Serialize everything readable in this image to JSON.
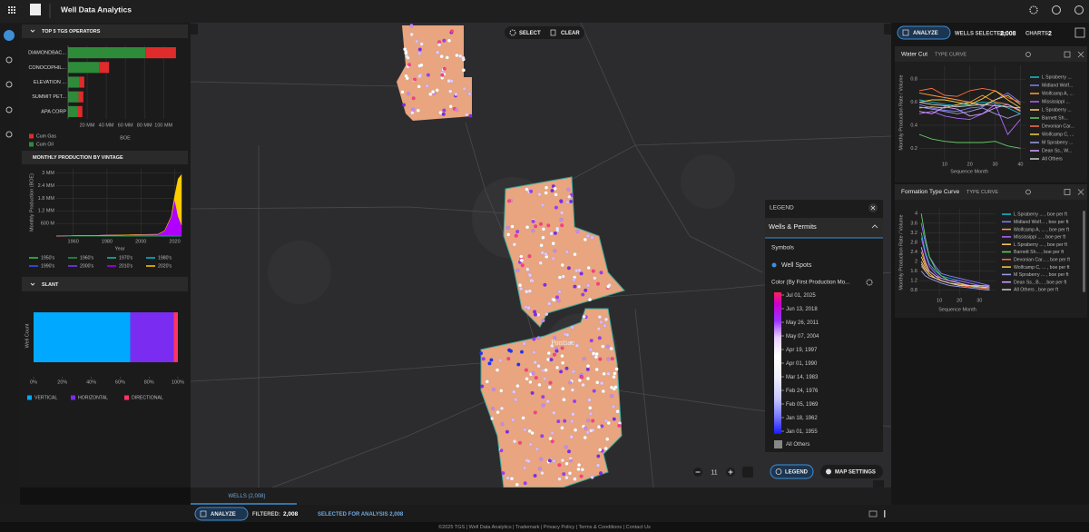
{
  "header": {
    "title": "Well Data Analytics"
  },
  "map": {
    "select": "SELECT",
    "clear": "CLEAR",
    "place": "Pontiac",
    "zoom": "11",
    "legend_button": "LEGEND",
    "settings_button": "MAP SETTINGS"
  },
  "legend": {
    "title": "LEGEND",
    "layer": "Wells & Permits",
    "symbols": "Symbols",
    "symbol": "Well Spots",
    "color_by": "Color (By First Production Mo...",
    "stops": [
      "Jul 01, 2025",
      "Jun 13, 2018",
      "May 26, 2011",
      "May 07, 2004",
      "Apr 19, 1997",
      "Apr 01, 1990",
      "Mar 14, 1983",
      "Feb 24, 1976",
      "Feb 05, 1969",
      "Jan 18, 1962",
      "Jan 01, 1955"
    ],
    "other": "All Others"
  },
  "right_bar": {
    "analyze": "ANALYZE",
    "wells_selected": "WELLS SELECTED:",
    "wells_count": "2,008",
    "charts": "CHARTS:",
    "charts_count": "2"
  },
  "bottom": {
    "tab": "WELLS (2,008)",
    "analyze": "ANALYZE",
    "filtered": "FILTERED:",
    "filtered_count": "2,008",
    "selected": "SELECTED FOR ANALYSIS 2,008"
  },
  "footer": "©2025 TGS | Well Data Analytics | Trademark | Privacy Policy | Terms & Conditions | Contact Us",
  "chart_data": [
    {
      "type": "bar",
      "orientation": "horizontal",
      "stacked": true,
      "title": "TOP 5 TGS OPERATORS",
      "xlabel": "BOE",
      "categories": [
        "DIAMONDBAC...",
        "CONOCOPHIL...",
        "ELEVATION ...",
        "SUMMIT PET...",
        "APA CORP"
      ],
      "series": [
        {
          "name": "Cum Oil",
          "color": "#2e8b3a",
          "values": [
            81000000,
            33000000,
            12000000,
            11000000,
            10000000
          ]
        },
        {
          "name": "Cum Gas",
          "color": "#e02b2b",
          "values": [
            32000000,
            10000000,
            5000000,
            5000000,
            5000000
          ]
        }
      ],
      "xlim": [
        0,
        115000000
      ],
      "xticks": [
        {
          "value": 20000000,
          "label": "20 MM"
        },
        {
          "value": 40000000,
          "label": "40 MM"
        },
        {
          "value": 60000000,
          "label": "60 MM"
        },
        {
          "value": 80000000,
          "label": "80 MM"
        },
        {
          "value": 100000000,
          "label": "100 MM"
        }
      ],
      "grid": true
    },
    {
      "type": "area",
      "stacked": true,
      "title": "MONTHLY PRODUCTION BY VINTAGE",
      "xlabel": "Year",
      "ylabel": "Monthly Production (BOE)",
      "x": [
        1950,
        1960,
        1970,
        1980,
        1990,
        2000,
        2010,
        2014,
        2018,
        2020,
        2022,
        2024
      ],
      "series": [
        {
          "name": "1950's",
          "color": "#2ecc40",
          "values": [
            2000,
            5000,
            3000,
            2000,
            1000,
            1000,
            500,
            500,
            400,
            300,
            300,
            300
          ]
        },
        {
          "name": "1960's",
          "color": "#1e9e4a",
          "values": [
            0,
            8000,
            10000,
            6000,
            4000,
            3000,
            2000,
            1500,
            1200,
            1000,
            900,
            800
          ]
        },
        {
          "name": "1970's",
          "color": "#1abc9c",
          "values": [
            0,
            0,
            15000,
            12000,
            8000,
            6000,
            4000,
            3000,
            2500,
            2000,
            1800,
            1600
          ]
        },
        {
          "name": "1980's",
          "color": "#00bcd4",
          "values": [
            0,
            0,
            0,
            20000,
            15000,
            10000,
            7000,
            6000,
            5000,
            4000,
            3500,
            3000
          ]
        },
        {
          "name": "1990's",
          "color": "#3355ff",
          "values": [
            0,
            0,
            0,
            0,
            20000,
            15000,
            10000,
            8000,
            6000,
            5000,
            4500,
            4000
          ]
        },
        {
          "name": "2000's",
          "color": "#7a3cff",
          "values": [
            0,
            0,
            0,
            0,
            0,
            40000,
            40000,
            30000,
            25000,
            20000,
            18000,
            16000
          ]
        },
        {
          "name": "2010's",
          "color": "#b000ff",
          "values": [
            0,
            0,
            0,
            0,
            0,
            0,
            20000,
            200000,
            900000,
            1700000,
            900000,
            500000
          ]
        },
        {
          "name": "2020's",
          "color": "#ffcc00",
          "values": [
            0,
            0,
            0,
            0,
            0,
            0,
            0,
            0,
            0,
            200000,
            1800000,
            2400000
          ]
        }
      ],
      "xlim": [
        1950,
        2024
      ],
      "xticks": [
        1960,
        1980,
        2000,
        2020
      ],
      "ylim": [
        0,
        3200000
      ],
      "yticks": [
        {
          "value": 600000,
          "label": "600 M"
        },
        {
          "value": 1200000,
          "label": "1.2 MM"
        },
        {
          "value": 1800000,
          "label": "1.8 MM"
        },
        {
          "value": 2400000,
          "label": "2.4 MM"
        },
        {
          "value": 3000000,
          "label": "3 MM"
        }
      ],
      "grid": true
    },
    {
      "type": "bar",
      "orientation": "horizontal",
      "stacked": true,
      "title": "SLANT",
      "ylabel": "Well Count",
      "categories": [
        null
      ],
      "series": [
        {
          "name": "VERTICAL",
          "color": "#00a8ff",
          "values": [
            67
          ]
        },
        {
          "name": "HORIZONTAL",
          "color": "#7a2cf0",
          "values": [
            30
          ]
        },
        {
          "name": "DIRECTIONAL",
          "color": "#ff3366",
          "values": [
            3
          ]
        }
      ],
      "xlim": [
        0,
        100
      ],
      "xticks": [
        {
          "value": 0,
          "label": "0%"
        },
        {
          "value": 20,
          "label": "20%"
        },
        {
          "value": 40,
          "label": "40%"
        },
        {
          "value": 60,
          "label": "60%"
        },
        {
          "value": 80,
          "label": "80%"
        },
        {
          "value": 100,
          "label": "100%"
        }
      ],
      "grid": false
    },
    {
      "type": "line",
      "title": "Water Cut",
      "subtitle": "TYPE CURVE",
      "xlabel": "Sequence Month",
      "ylabel": "Monthly Production Rate / Volume",
      "x": [
        0,
        5,
        10,
        15,
        20,
        25,
        30,
        35,
        40
      ],
      "series": [
        {
          "name": "L Spraberry ...",
          "color": "#17becf",
          "values": [
            0.62,
            0.6,
            0.58,
            0.57,
            0.58,
            0.6,
            0.59,
            0.55,
            0.5
          ]
        },
        {
          "name": "Midland Wolf...",
          "color": "#7f7fff",
          "values": [
            0.58,
            0.55,
            0.53,
            0.52,
            0.55,
            0.56,
            0.62,
            0.68,
            0.6
          ]
        },
        {
          "name": "Wolfcamp A, ...",
          "color": "#ff9f40",
          "values": [
            0.68,
            0.66,
            0.64,
            0.62,
            0.6,
            0.66,
            0.6,
            0.58,
            0.52
          ]
        },
        {
          "name": "Mississippi ...",
          "color": "#b266ff",
          "values": [
            0.5,
            0.52,
            0.48,
            0.46,
            0.45,
            0.5,
            0.58,
            0.32,
            0.45
          ]
        },
        {
          "name": "L Spraberry ...",
          "color": "#ffcc66",
          "values": [
            0.55,
            0.56,
            0.55,
            0.58,
            0.6,
            0.57,
            0.62,
            0.66,
            0.58
          ]
        },
        {
          "name": "Barnett Sh...",
          "color": "#66cc66",
          "values": [
            0.32,
            0.28,
            0.26,
            0.25,
            0.25,
            0.25,
            0.26,
            0.22,
            0.2
          ]
        },
        {
          "name": "Devonian Car...",
          "color": "#ff7043",
          "values": [
            0.7,
            0.72,
            0.66,
            0.65,
            0.7,
            0.72,
            0.7,
            0.64,
            0.6
          ]
        },
        {
          "name": "Wolfcamp C, ...",
          "color": "#f4d03f",
          "values": [
            0.6,
            0.62,
            0.62,
            0.6,
            0.58,
            0.63,
            0.7,
            0.62,
            0.55
          ]
        },
        {
          "name": "M Spraberry ...",
          "color": "#9e9ee6",
          "values": [
            0.56,
            0.54,
            0.52,
            0.5,
            0.52,
            0.55,
            0.5,
            0.46,
            0.5
          ]
        },
        {
          "name": "Dean Ss., W...",
          "color": "#d9a0ff",
          "values": [
            0.52,
            0.5,
            0.56,
            0.54,
            0.48,
            0.5,
            0.55,
            0.58,
            0.53
          ]
        },
        {
          "name": "All Others",
          "color": "#cccccc",
          "values": [
            0.6,
            0.58,
            0.57,
            0.56,
            0.57,
            0.58,
            0.57,
            0.56,
            0.55
          ]
        }
      ],
      "xlim": [
        0,
        42
      ],
      "xticks": [
        10,
        20,
        30,
        40
      ],
      "ylim": [
        0.1,
        0.92
      ],
      "yticks": [
        0.2,
        0.4,
        0.6,
        0.8
      ],
      "grid": true
    },
    {
      "type": "line",
      "title": "Formation Type Curve",
      "subtitle": "TYPE CURVE",
      "xlabel": "Sequence Month",
      "ylabel": "Monthly Production Rate / Volume",
      "x": [
        1,
        3,
        5,
        8,
        11,
        15,
        20,
        25,
        30,
        35
      ],
      "series": [
        {
          "name": "L Spraberry ... , boe per ft",
          "color": "#17becf",
          "values": [
            3.2,
            2.4,
            1.9,
            1.6,
            1.4,
            1.3,
            1.2,
            1.1,
            1.0,
            1.0
          ]
        },
        {
          "name": "Midland Wolf... , boe per ft",
          "color": "#7f7fff",
          "values": [
            3.6,
            2.8,
            2.2,
            1.8,
            1.5,
            1.4,
            1.3,
            1.2,
            1.1,
            1.0
          ]
        },
        {
          "name": "Wolfcamp A, ... , boe per ft",
          "color": "#ff9f40",
          "values": [
            2.4,
            1.9,
            1.6,
            1.4,
            1.2,
            1.1,
            1.0,
            0.95,
            0.9,
            0.9
          ]
        },
        {
          "name": "Mississippi ... , boe per ft",
          "color": "#b266ff",
          "values": [
            3.0,
            2.3,
            1.8,
            1.5,
            1.3,
            1.2,
            1.2,
            1.1,
            1.0,
            1.0
          ]
        },
        {
          "name": "L Spraberry ... , boe per ft",
          "color": "#ffcc66",
          "values": [
            2.0,
            1.7,
            1.5,
            1.3,
            1.2,
            1.1,
            1.0,
            1.0,
            0.9,
            0.9
          ]
        },
        {
          "name": "Barnett Sh... , boe per ft",
          "color": "#66cc66",
          "values": [
            4.0,
            3.0,
            2.2,
            1.7,
            1.4,
            1.2,
            1.1,
            1.0,
            0.9,
            0.9
          ]
        },
        {
          "name": "Devonian Car... , boe per ft",
          "color": "#ff7043",
          "values": [
            1.8,
            1.6,
            1.4,
            1.3,
            1.2,
            1.1,
            1.0,
            0.95,
            0.9,
            0.85
          ]
        },
        {
          "name": "Wolfcamp C, ... , boe per ft",
          "color": "#f4d03f",
          "values": [
            2.2,
            1.8,
            1.5,
            1.3,
            1.2,
            1.1,
            1.05,
            1.0,
            0.95,
            0.9
          ]
        },
        {
          "name": "M Spraberry ... , boe per ft",
          "color": "#9e9ee6",
          "values": [
            1.6,
            1.4,
            1.3,
            1.2,
            1.1,
            1.0,
            0.95,
            0.9,
            0.85,
            0.8
          ]
        },
        {
          "name": "Dean Ss., B... , boe per ft",
          "color": "#d9a0ff",
          "values": [
            2.6,
            2.0,
            1.6,
            1.4,
            1.3,
            1.2,
            1.1,
            1.0,
            1.0,
            0.95
          ]
        },
        {
          "name": "All Others , boe per ft",
          "color": "#cccccc",
          "values": [
            1.9,
            1.6,
            1.4,
            1.3,
            1.2,
            1.1,
            1.0,
            1.0,
            0.95,
            0.9
          ]
        }
      ],
      "xlim": [
        0,
        38
      ],
      "xticks": [
        10,
        20,
        30
      ],
      "ylim": [
        0.6,
        4.2
      ],
      "yticks": [
        0.8,
        1.2,
        1.6,
        2,
        2.4,
        2.8,
        3.2,
        3.6,
        4
      ],
      "grid": true
    }
  ]
}
